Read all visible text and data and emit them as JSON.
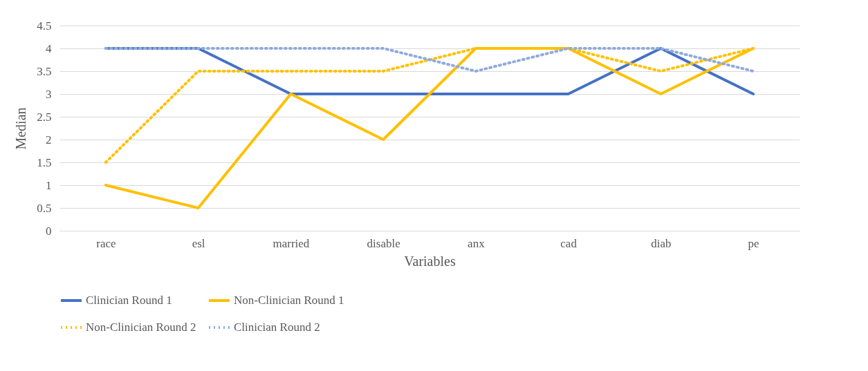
{
  "chart_data": {
    "type": "line",
    "xlabel": "Variables",
    "ylabel": "Median",
    "categories": [
      "race",
      "esl",
      "married",
      "disable",
      "anx",
      "cad",
      "diab",
      "pe"
    ],
    "ylim": [
      0,
      4.5
    ],
    "yticks": [
      0,
      0.5,
      1,
      1.5,
      2,
      2.5,
      3,
      3.5,
      4,
      4.5
    ],
    "grid": "y",
    "legend": "bottom",
    "series": [
      {
        "name": "Clinician Round 1",
        "color": "#4472c4",
        "line_style": "solid",
        "values": [
          4,
          4,
          3,
          3,
          3,
          3,
          4,
          3
        ]
      },
      {
        "name": "Non-Clinician Round 1",
        "color": "#ffc000",
        "line_style": "solid",
        "values": [
          1,
          0.5,
          3,
          2,
          4,
          4,
          3,
          4
        ]
      },
      {
        "name": "Non-Clinician Round 2",
        "color": "#ffc000",
        "line_style": "dotted",
        "values": [
          1.5,
          3.5,
          3.5,
          3.5,
          4,
          4,
          3.5,
          4
        ]
      },
      {
        "name": "Clinician Round 2",
        "color": "#8faadc",
        "line_style": "dotted",
        "values": [
          4,
          4,
          4,
          4,
          3.5,
          4,
          4,
          3.5
        ]
      }
    ]
  }
}
